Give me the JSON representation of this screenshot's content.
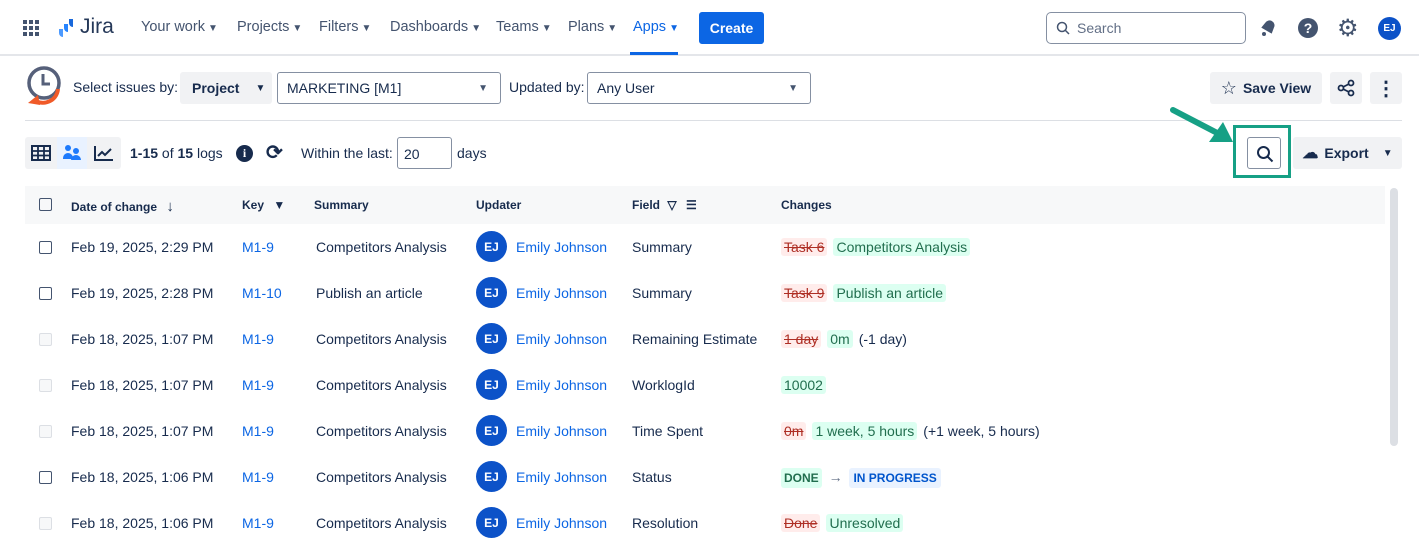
{
  "nav": {
    "brand": "Jira",
    "items": [
      {
        "label": "Your work"
      },
      {
        "label": "Projects"
      },
      {
        "label": "Filters"
      },
      {
        "label": "Dashboards"
      },
      {
        "label": "Teams"
      },
      {
        "label": "Plans"
      },
      {
        "label": "Apps",
        "active": true
      }
    ],
    "create": "Create",
    "search_placeholder": "Search",
    "avatar": "EJ"
  },
  "filters": {
    "select_by_label": "Select issues by:",
    "select_by_value": "Project",
    "project_value": "MARKETING [M1]",
    "updated_by_label": "Updated by:",
    "updated_by_value": "Any User",
    "save_view": "Save View"
  },
  "toolbar": {
    "count_range": "1-15",
    "count_of": "of",
    "count_total": "15",
    "count_unit": "logs",
    "within_label": "Within the last:",
    "within_value": "20",
    "within_unit": "days",
    "export": "Export"
  },
  "table": {
    "headers": {
      "date": "Date of change",
      "key": "Key",
      "summary": "Summary",
      "updater": "Updater",
      "field": "Field",
      "changes": "Changes"
    },
    "rows": [
      {
        "enabled": true,
        "date": "Feb 19, 2025, 2:29 PM",
        "key": "M1-9",
        "summary": "Competitors Analysis",
        "initials": "EJ",
        "updater": "Emily Johnson",
        "field": "Summary",
        "old": "Task 6",
        "new": "Competitors Analysis",
        "delta": ""
      },
      {
        "enabled": true,
        "date": "Feb 19, 2025, 2:28 PM",
        "key": "M1-10",
        "summary": "Publish an article",
        "initials": "EJ",
        "updater": "Emily Johnson",
        "field": "Summary",
        "old": "Task 9",
        "new": "Publish an article",
        "delta": ""
      },
      {
        "enabled": false,
        "date": "Feb 18, 2025, 1:07 PM",
        "key": "M1-9",
        "summary": "Competitors Analysis",
        "initials": "EJ",
        "updater": "Emily Johnson",
        "field": "Remaining Estimate",
        "old": "1 day",
        "new": "0m",
        "delta": "(-1 day)"
      },
      {
        "enabled": false,
        "date": "Feb 18, 2025, 1:07 PM",
        "key": "M1-9",
        "summary": "Competitors Analysis",
        "initials": "EJ",
        "updater": "Emily Johnson",
        "field": "WorklogId",
        "old": "",
        "new": "10002",
        "delta": ""
      },
      {
        "enabled": false,
        "date": "Feb 18, 2025, 1:07 PM",
        "key": "M1-9",
        "summary": "Competitors Analysis",
        "initials": "EJ",
        "updater": "Emily Johnson",
        "field": "Time Spent",
        "old": "0m",
        "new": "1 week, 5 hours",
        "delta": "(+1 week, 5 hours)"
      },
      {
        "enabled": true,
        "date": "Feb 18, 2025, 1:06 PM",
        "key": "M1-9",
        "summary": "Competitors Analysis",
        "initials": "EJ",
        "updater": "Emily Johnson",
        "field": "Status",
        "status_from": "DONE",
        "status_to": "IN PROGRESS"
      },
      {
        "enabled": false,
        "date": "Feb 18, 2025, 1:06 PM",
        "key": "M1-9",
        "summary": "Competitors Analysis",
        "initials": "EJ",
        "updater": "Emily Johnson",
        "field": "Resolution",
        "old": "Done",
        "new": "Unresolved",
        "delta": ""
      }
    ]
  },
  "colors": {
    "accent": "#0c66e4",
    "highlight": "#16a085"
  }
}
